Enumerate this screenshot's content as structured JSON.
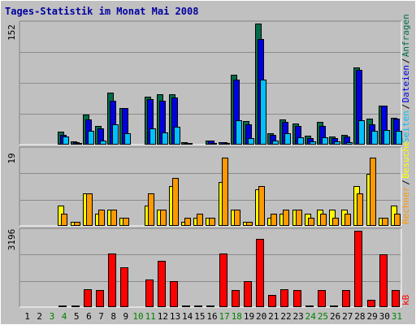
{
  "title": "Tages-Statistik im Monat Mai 2008",
  "colors": {
    "background": "#c0c0c0",
    "plot_bg": "#c0c0c0",
    "grid": "#8a8a8a",
    "title": "#0000a0",
    "anfragen": "#006c4c",
    "dateien": "#0000e0",
    "seiten": "#00c0ff",
    "besuche": "#ffff00",
    "rechner": "#ff9900",
    "kb": "#ff0000",
    "weekend_label": "#008000",
    "day_label": "#000000"
  },
  "chart_data": [
    {
      "type": "bar",
      "panel": "top",
      "ymax_label": "152",
      "ylim": [
        0,
        152
      ],
      "categories": [
        "1",
        "2",
        "3",
        "4",
        "5",
        "6",
        "7",
        "8",
        "9",
        "10",
        "11",
        "12",
        "13",
        "14",
        "15",
        "16",
        "17",
        "18",
        "19",
        "20",
        "21",
        "22",
        "23",
        "24",
        "25",
        "26",
        "27",
        "28",
        "29",
        "30",
        "31"
      ],
      "series": [
        {
          "name": "Anfragen",
          "color_key": "anfragen",
          "values": [
            0,
            0,
            0,
            16,
            4,
            38,
            23,
            65,
            46,
            0,
            60,
            63,
            63,
            3,
            0,
            5,
            3,
            88,
            30,
            152,
            14,
            32,
            27,
            11,
            29,
            10,
            12,
            97,
            33,
            49,
            34
          ]
        },
        {
          "name": "Dateien",
          "color_key": "dateien",
          "values": [
            0,
            0,
            0,
            12,
            3,
            32,
            20,
            55,
            46,
            0,
            57,
            55,
            59,
            2,
            0,
            5,
            3,
            82,
            25,
            133,
            12,
            29,
            23,
            8,
            23,
            8,
            10,
            94,
            25,
            49,
            33
          ]
        },
        {
          "name": "Seiten",
          "color_key": "seiten",
          "values": [
            0,
            0,
            0,
            10,
            2,
            17,
            5,
            25,
            14,
            0,
            20,
            15,
            22,
            1,
            0,
            2,
            1,
            31,
            8,
            82,
            5,
            14,
            9,
            4,
            9,
            4,
            3,
            31,
            17,
            18,
            17
          ]
        }
      ],
      "right_labels": [
        {
          "text": "Seiten",
          "color_key": "seiten"
        },
        {
          "text": "Dateien",
          "color_key": "dateien"
        },
        {
          "text": "Anfragen",
          "color_key": "anfragen"
        }
      ]
    },
    {
      "type": "bar",
      "panel": "middle",
      "ymax_label": "19",
      "ylim": [
        0,
        19
      ],
      "categories": [
        "1",
        "2",
        "3",
        "4",
        "5",
        "6",
        "7",
        "8",
        "9",
        "10",
        "11",
        "12",
        "13",
        "14",
        "15",
        "16",
        "17",
        "18",
        "19",
        "20",
        "21",
        "22",
        "23",
        "24",
        "25",
        "26",
        "27",
        "28",
        "29",
        "30",
        "31"
      ],
      "series": [
        {
          "name": "Besuche",
          "color_key": "besuche",
          "values": [
            0,
            0,
            0,
            5,
            1,
            8,
            3,
            4,
            2,
            0,
            5,
            4,
            10,
            1,
            2,
            2,
            11,
            4,
            1,
            9,
            2,
            3,
            4,
            3,
            4,
            4,
            4,
            10,
            13,
            2,
            5
          ]
        },
        {
          "name": "Rechner",
          "color_key": "rechner",
          "values": [
            0,
            0,
            0,
            3,
            1,
            8,
            4,
            4,
            2,
            0,
            8,
            4,
            12,
            2,
            3,
            2,
            17,
            4,
            1,
            10,
            3,
            4,
            4,
            2,
            3,
            2,
            3,
            8,
            17,
            2,
            3
          ]
        }
      ],
      "right_labels": [
        {
          "text": "Rechner",
          "color_key": "rechner"
        },
        {
          "text": "Besuche",
          "color_key": "besuche"
        }
      ]
    },
    {
      "type": "bar",
      "panel": "bottom",
      "ymax_label": "3196",
      "ylim": [
        0,
        3196
      ],
      "categories": [
        "1",
        "2",
        "3",
        "4",
        "5",
        "6",
        "7",
        "8",
        "9",
        "10",
        "11",
        "12",
        "13",
        "14",
        "15",
        "16",
        "17",
        "18",
        "19",
        "20",
        "21",
        "22",
        "23",
        "24",
        "25",
        "26",
        "27",
        "28",
        "29",
        "30",
        "31"
      ],
      "series": [
        {
          "name": "kB",
          "color_key": "kb",
          "values": [
            0,
            0,
            0,
            80,
            50,
            750,
            700,
            2250,
            1650,
            0,
            1150,
            1950,
            1100,
            50,
            50,
            50,
            2250,
            700,
            1100,
            2850,
            500,
            750,
            700,
            50,
            700,
            50,
            700,
            3196,
            300,
            2200,
            700
          ]
        }
      ],
      "right_labels": [
        {
          "text": "kB",
          "color_key": "kb"
        }
      ]
    }
  ],
  "x_axis": {
    "labels": [
      "1",
      "2",
      "3",
      "4",
      "5",
      "6",
      "7",
      "8",
      "9",
      "10",
      "11",
      "12",
      "13",
      "14",
      "15",
      "16",
      "17",
      "18",
      "19",
      "20",
      "21",
      "22",
      "23",
      "24",
      "25",
      "26",
      "27",
      "28",
      "29",
      "30",
      "31"
    ],
    "weekend_days": [
      "3",
      "4",
      "10",
      "11",
      "17",
      "18",
      "24",
      "25",
      "31"
    ]
  }
}
